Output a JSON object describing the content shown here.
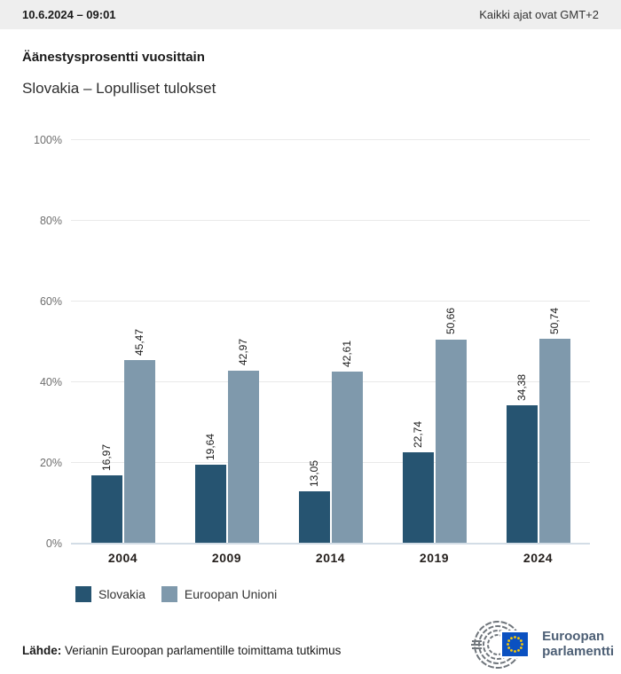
{
  "header": {
    "datetime": "10.6.2024 – 09:01",
    "timezone_note": "Kaikki ajat ovat GMT+2"
  },
  "title": "Äänestysprosentti vuosittain",
  "subtitle": "Slovakia – Lopulliset tulokset",
  "chart_data": {
    "type": "bar",
    "title": "Äänestysprosentti vuosittain",
    "subtitle": "Slovakia – Lopulliset tulokset",
    "categories": [
      "2004",
      "2009",
      "2014",
      "2019",
      "2024"
    ],
    "series": [
      {
        "name": "Slovakia",
        "color": "#265471",
        "values": [
          16.97,
          19.64,
          13.05,
          22.74,
          34.38
        ],
        "labels": [
          "16,97",
          "19,64",
          "13,05",
          "22,74",
          "34,38"
        ]
      },
      {
        "name": "Euroopan Unioni",
        "color": "#7f99ac",
        "values": [
          45.47,
          42.97,
          42.61,
          50.66,
          50.74
        ],
        "labels": [
          "45,47",
          "42,97",
          "42,61",
          "50,66",
          "50,74"
        ]
      }
    ],
    "ylim": [
      0,
      100
    ],
    "yticks": [
      0,
      20,
      40,
      60,
      80,
      100
    ],
    "ytick_labels": [
      "0%",
      "20%",
      "40%",
      "60%",
      "80%",
      "100%"
    ],
    "grid": true,
    "legend_position": "bottom",
    "value_label_rotation": -90,
    "value_label_decimal": "comma"
  },
  "legend": {
    "items": [
      {
        "label": "Slovakia",
        "color": "#265471"
      },
      {
        "label": "Euroopan Unioni",
        "color": "#7f99ac"
      }
    ]
  },
  "footer": {
    "source_label": "Lähde:",
    "source_text": " Verianin Euroopan parlamentille toimittama tutkimus",
    "logo_line1": "Euroopan",
    "logo_line2": "parlamentti"
  },
  "colors": {
    "topbar_bg": "#eeeeee",
    "bar_slovakia": "#265471",
    "bar_eu": "#7f99ac",
    "gridline": "#e9e9e9",
    "axis_line": "#d3dde6",
    "eu_flag_blue": "#0b51c1",
    "eu_star_yellow": "#ffcc00",
    "logo_gray": "#70767c",
    "logo_text": "#4d5f75"
  }
}
